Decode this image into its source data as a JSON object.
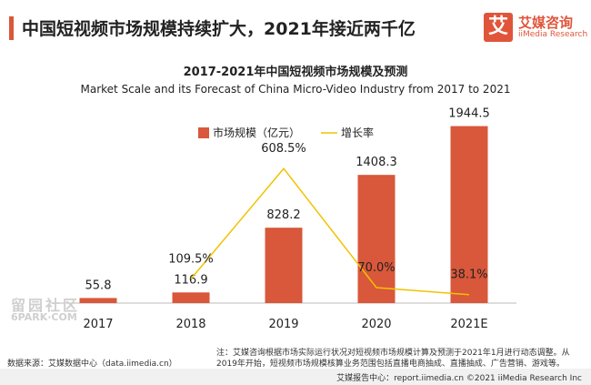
{
  "header": {
    "title": "中国短视频市场规模持续扩大，2021年接近两千亿",
    "logo_cn": "艾媒咨询",
    "logo_en": "iiMedia Research",
    "logo_mark": "艾"
  },
  "chart_data": {
    "type": "bar",
    "title": "2017-2021年中国短视频市场规模及预测",
    "subtitle": "Market Scale and its Forecast of China Micro-Video Industry from 2017 to 2021",
    "categories": [
      "2017",
      "2018",
      "2019",
      "2020",
      "2021E"
    ],
    "series": [
      {
        "name": "市场规模（亿元）",
        "type": "bar",
        "color": "#d9573a",
        "values": [
          55.8,
          116.9,
          828.2,
          1408.3,
          1944.5
        ],
        "labels": [
          "55.8",
          "116.9",
          "828.2",
          "1408.3",
          "1944.5"
        ]
      },
      {
        "name": "增长率",
        "type": "line",
        "color": "#f2c200",
        "values": [
          null,
          109.5,
          608.5,
          70.0,
          38.1
        ],
        "labels": [
          "",
          "109.5%",
          "608.5%",
          "70.0%",
          "38.1%"
        ]
      }
    ],
    "legend_position": "top-center",
    "grid": false
  },
  "footer": {
    "note": "注：艾媒咨询根据市场实际运行状况对短视频市场规模计算及预测于2021年1月进行动态调整。从2019年开始，短视频市场规模核算业务范围包括直播电商抽成、直播抽成、广告营销、游戏等。",
    "source": "数据来源：艾媒数据中心（data.iimedia.cn）",
    "credit": "艾媒报告中心：report.iimedia.cn    ©2021  iiMedia Research  Inc"
  },
  "watermark": {
    "text": "留园社区",
    "sub": "6PARK·COM"
  }
}
